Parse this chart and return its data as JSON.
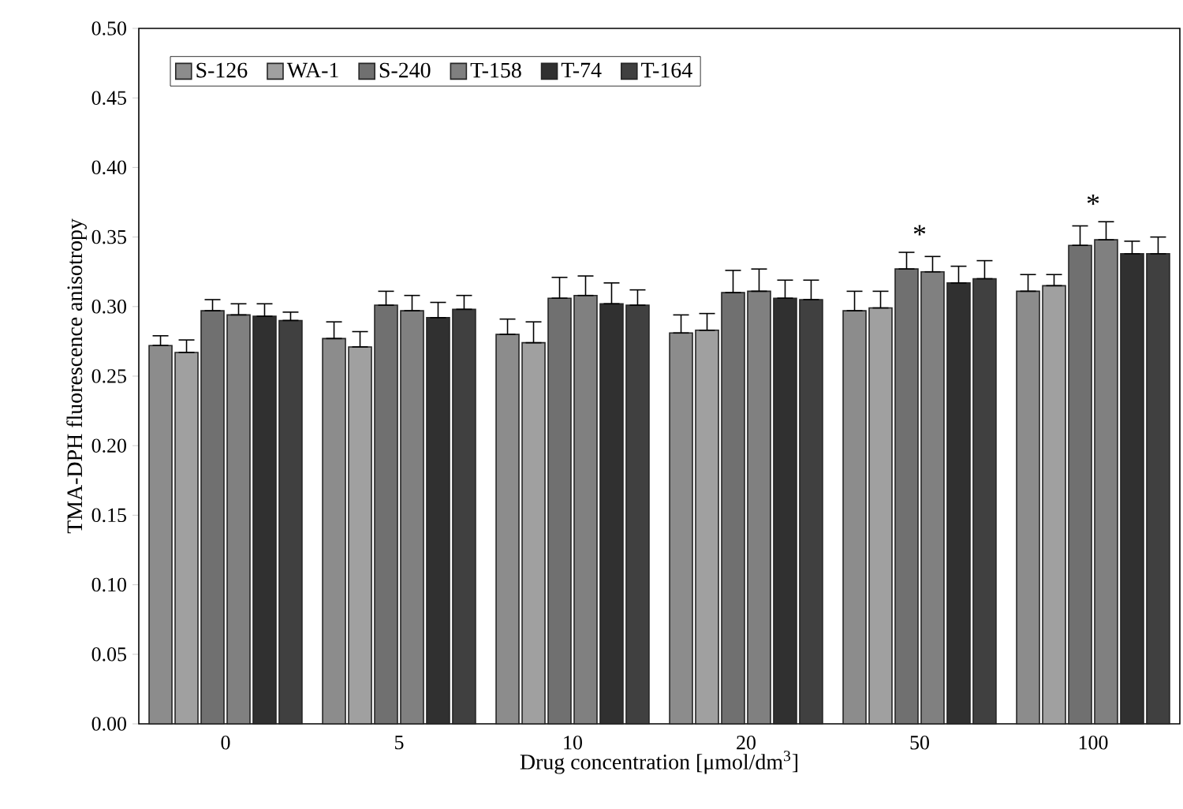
{
  "chart_data": {
    "type": "bar",
    "xlabel": "Drug concentration [μmol/dm$^{3}$]",
    "ylabel": "TMA-DPH fluorescence anisotropy",
    "categories": [
      "0",
      "5",
      "10",
      "20",
      "50",
      "100"
    ],
    "series": [
      {
        "name": "S-126",
        "color": "#8c8c8c",
        "values": [
          0.272,
          0.277,
          0.28,
          0.281,
          0.297,
          0.311
        ],
        "errors": [
          [
            0.272,
            0.279
          ],
          [
            0.277,
            0.289
          ],
          [
            0.28,
            0.291
          ],
          [
            0.281,
            0.294
          ],
          [
            0.297,
            0.311
          ],
          [
            0.311,
            0.323
          ]
        ]
      },
      {
        "name": "WA-1",
        "color": "#a0a0a0",
        "values": [
          0.267,
          0.271,
          0.274,
          0.283,
          0.299,
          0.315
        ],
        "errors": [
          [
            0.267,
            0.276
          ],
          [
            0.271,
            0.282
          ],
          [
            0.274,
            0.289
          ],
          [
            0.283,
            0.295
          ],
          [
            0.299,
            0.311
          ],
          [
            0.315,
            0.323
          ]
        ]
      },
      {
        "name": "S-240",
        "color": "#707070",
        "values": [
          0.297,
          0.301,
          0.306,
          0.31,
          0.327,
          0.344
        ],
        "errors": [
          [
            0.297,
            0.305
          ],
          [
            0.301,
            0.311
          ],
          [
            0.306,
            0.321
          ],
          [
            0.31,
            0.326
          ],
          [
            0.327,
            0.339
          ],
          [
            0.344,
            0.358
          ]
        ]
      },
      {
        "name": "T-158",
        "color": "#808080",
        "values": [
          0.294,
          0.297,
          0.308,
          0.311,
          0.325,
          0.348
        ],
        "errors": [
          [
            0.294,
            0.302
          ],
          [
            0.297,
            0.308
          ],
          [
            0.308,
            0.322
          ],
          [
            0.311,
            0.327
          ],
          [
            0.325,
            0.336
          ],
          [
            0.348,
            0.361
          ]
        ]
      },
      {
        "name": "T-74",
        "color": "#303030",
        "values": [
          0.293,
          0.292,
          0.302,
          0.306,
          0.317,
          0.338
        ],
        "errors": [
          [
            0.293,
            0.302
          ],
          [
            0.292,
            0.303
          ],
          [
            0.302,
            0.317
          ],
          [
            0.306,
            0.319
          ],
          [
            0.317,
            0.329
          ],
          [
            0.338,
            0.347
          ]
        ]
      },
      {
        "name": "T-164",
        "color": "#404040",
        "values": [
          0.29,
          0.298,
          0.301,
          0.305,
          0.32,
          0.338
        ],
        "errors": [
          [
            0.29,
            0.296
          ],
          [
            0.298,
            0.308
          ],
          [
            0.301,
            0.312
          ],
          [
            0.305,
            0.319
          ],
          [
            0.32,
            0.333
          ],
          [
            0.338,
            0.35
          ]
        ]
      }
    ],
    "ylim": [
      0,
      0.5
    ],
    "yticks": [
      {
        "value": 0,
        "label": "0.00"
      },
      {
        "value": 0.05,
        "label": "0.05"
      },
      {
        "value": 0.1,
        "label": "0.10"
      },
      {
        "value": 0.15,
        "label": "0.15"
      },
      {
        "value": 0.2,
        "label": "0.20"
      },
      {
        "value": 0.25,
        "label": "0.25"
      },
      {
        "value": 0.3,
        "label": "0.30"
      },
      {
        "value": 0.35,
        "label": "0.35"
      },
      {
        "value": 0.4,
        "label": "0.40"
      },
      {
        "value": 0.45,
        "label": "0.45"
      },
      {
        "value": 0.5,
        "label": "0.50"
      }
    ],
    "annotations": [
      "*",
      "*"
    ],
    "grid": false,
    "legend": "top left"
  }
}
